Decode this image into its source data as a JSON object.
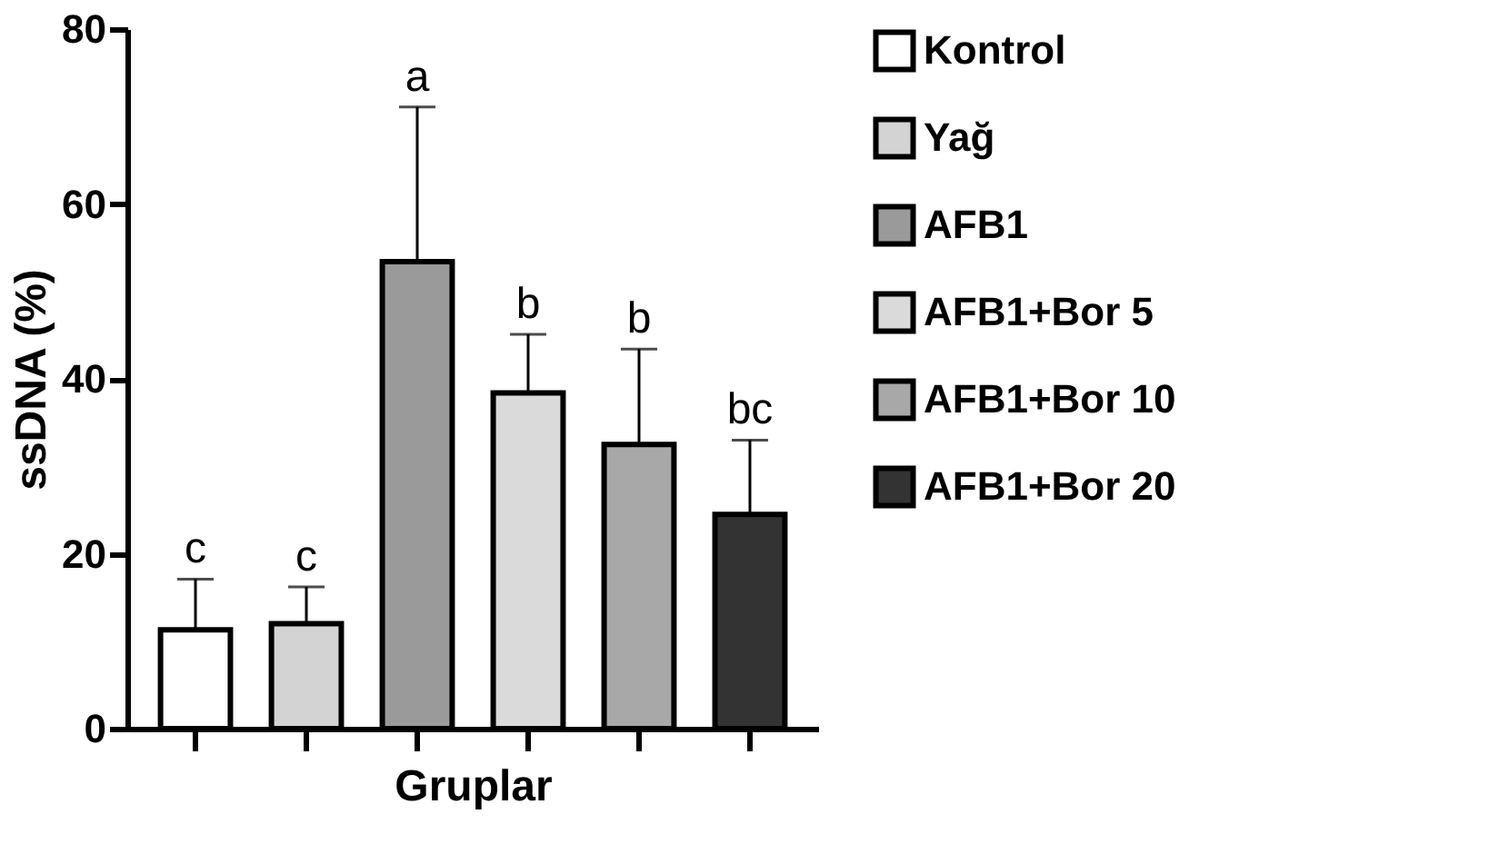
{
  "chart_data": {
    "type": "bar",
    "xlabel": "Gruplar",
    "ylabel": "ssDNA (%)",
    "categories": [
      null,
      null,
      null,
      null,
      null,
      null
    ],
    "series": [
      {
        "name": "Kontrol",
        "color": "#ffffff",
        "values": [
          11.3,
          null,
          null,
          null,
          null,
          null
        ],
        "errors": [
          5.8,
          null,
          null,
          null,
          null,
          null
        ]
      },
      {
        "name": "Yağ",
        "color": "#d3d3d3",
        "values": [
          null,
          12.0,
          null,
          null,
          null,
          null
        ],
        "errors": [
          null,
          4.2,
          null,
          null,
          null,
          null
        ]
      },
      {
        "name": "AFB1",
        "color": "#9a9a9a",
        "values": [
          null,
          null,
          53.4,
          null,
          null,
          null
        ],
        "errors": [
          null,
          null,
          17.7,
          null,
          null,
          null
        ]
      },
      {
        "name": "AFB1+Bor 5",
        "color": "#dadada",
        "values": [
          null,
          null,
          null,
          38.4,
          null,
          null
        ],
        "errors": [
          null,
          null,
          null,
          6.7,
          null,
          null
        ]
      },
      {
        "name": "AFB1+Bor 10",
        "color": "#a8a8a8",
        "values": [
          null,
          null,
          null,
          null,
          32.5,
          null
        ],
        "errors": [
          null,
          null,
          null,
          null,
          10.9,
          null
        ]
      },
      {
        "name": "AFB1+Bor 20",
        "color": "#333333",
        "values": [
          null,
          null,
          null,
          null,
          null,
          24.5
        ],
        "errors": [
          null,
          null,
          null,
          null,
          null,
          8.5
        ]
      }
    ],
    "annotations": [
      "c",
      "c",
      "a",
      "b",
      "b",
      "bc"
    ],
    "ylim": [
      0,
      80
    ],
    "yticks": [
      0,
      20,
      40,
      60,
      80
    ],
    "grid": false,
    "legend": "right",
    "tick_labels": "y"
  }
}
